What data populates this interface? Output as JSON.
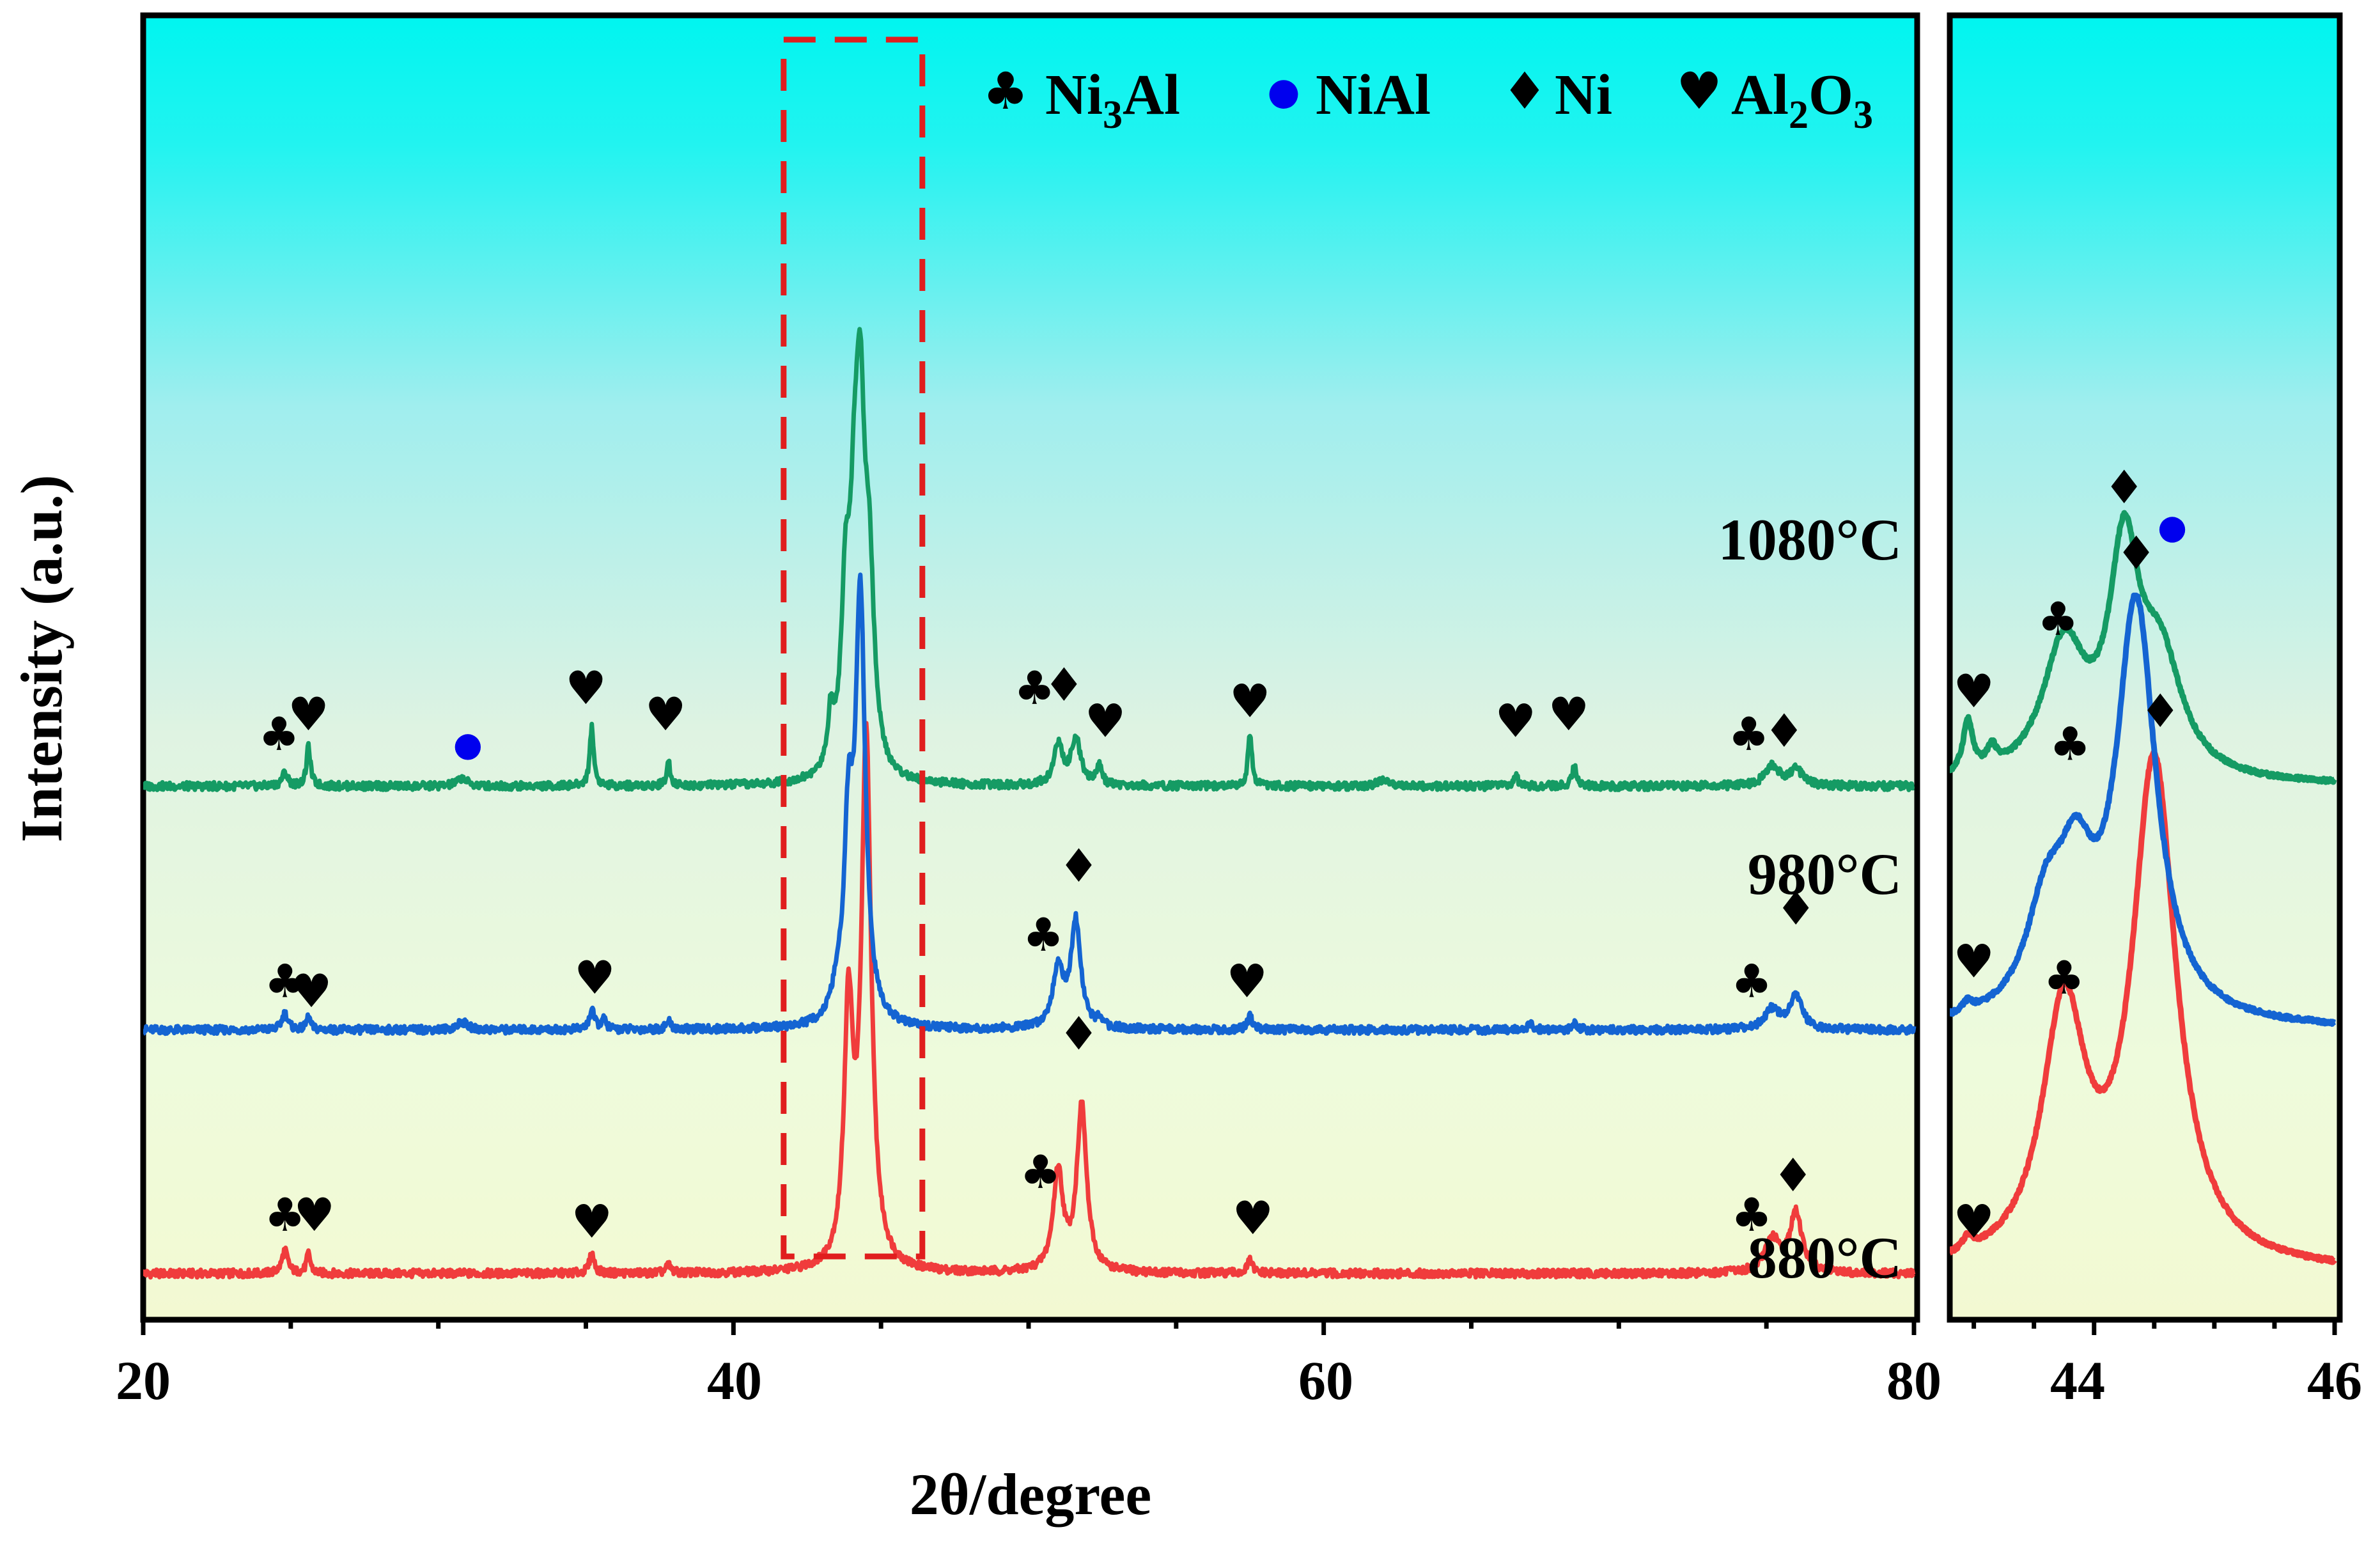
{
  "chart_data": {
    "type": "line",
    "title": "",
    "xlabel": "2θ/degree",
    "ylabel": "Intensity (a.u.)",
    "xlim": [
      20,
      80
    ],
    "xticks": [
      "20",
      "40",
      "60",
      "80"
    ],
    "inset_xlim": [
      42.8,
      46
    ],
    "inset_xticks": [
      "44",
      "46"
    ],
    "highlight_box_x": [
      41.7,
      46.4
    ],
    "colors": {
      "s880": "#f03c3c",
      "s980": "#1464d2",
      "s1080": "#159b64",
      "ni3al": "#ff00ff",
      "nial": "#0000ee",
      "ni": "#000000",
      "al2o3": "#ff8c14",
      "box": "#e01e1e"
    },
    "legend": [
      {
        "symbol": "club",
        "label": "Ni",
        "sub": "3",
        "label2": "Al",
        "color": "#ff00ff"
      },
      {
        "symbol": "circle",
        "label": "NiAl",
        "color": "#0000ee"
      },
      {
        "symbol": "diamond",
        "label": "Ni",
        "color": "#000000"
      },
      {
        "symbol": "heart",
        "label": "Al",
        "sub": "2",
        "label2": "O",
        "sub2": "3",
        "color": "#ff8c14"
      }
    ],
    "series": [
      {
        "name": "880°C",
        "color": "#f03c3c",
        "baseline": 0.07,
        "peaks": [
          [
            24.8,
            0.035,
            0.12
          ],
          [
            25.6,
            0.03,
            0.08
          ],
          [
            35.2,
            0.03,
            0.1
          ],
          [
            37.8,
            0.012,
            0.1
          ],
          [
            43.9,
            0.38,
            0.18
          ],
          [
            44.5,
            0.8,
            0.2
          ],
          [
            51.0,
            0.15,
            0.2
          ],
          [
            51.8,
            0.25,
            0.2
          ],
          [
            57.5,
            0.02,
            0.1
          ],
          [
            75.2,
            0.05,
            0.3
          ],
          [
            76.0,
            0.09,
            0.25
          ]
        ],
        "markers": [
          {
            "x": 24.8,
            "y": 0.135,
            "phase": "club"
          },
          {
            "x": 25.8,
            "y": 0.135,
            "phase": "heart"
          },
          {
            "x": 35.2,
            "y": 0.125,
            "phase": "heart"
          },
          {
            "x": 51.7,
            "y": 0.41,
            "phase": "diamond"
          },
          {
            "x": 50.4,
            "y": 0.2,
            "phase": "club"
          },
          {
            "x": 57.6,
            "y": 0.13,
            "phase": "heart"
          },
          {
            "x": 74.5,
            "y": 0.135,
            "phase": "club"
          },
          {
            "x": 75.9,
            "y": 0.195,
            "phase": "diamond"
          }
        ]
      },
      {
        "name": "980°C",
        "color": "#1464d2",
        "baseline": 0.44,
        "peaks": [
          [
            24.8,
            0.025,
            0.12
          ],
          [
            25.6,
            0.02,
            0.08
          ],
          [
            30.8,
            0.012,
            0.2
          ],
          [
            35.2,
            0.03,
            0.1
          ],
          [
            35.6,
            0.015,
            0.1
          ],
          [
            37.8,
            0.012,
            0.1
          ],
          [
            43.5,
            0.03,
            0.2
          ],
          [
            43.9,
            0.27,
            0.18
          ],
          [
            44.3,
            0.64,
            0.2
          ],
          [
            51.0,
            0.09,
            0.22
          ],
          [
            51.6,
            0.16,
            0.2
          ],
          [
            52.4,
            0.01,
            0.1
          ],
          [
            57.5,
            0.02,
            0.1
          ],
          [
            67.0,
            0.01,
            0.1
          ],
          [
            68.5,
            0.01,
            0.1
          ],
          [
            75.2,
            0.03,
            0.3
          ],
          [
            76.0,
            0.05,
            0.25
          ]
        ],
        "markers": [
          {
            "x": 24.8,
            "y": 0.49,
            "phase": "club"
          },
          {
            "x": 25.7,
            "y": 0.475,
            "phase": "heart"
          },
          {
            "x": 35.3,
            "y": 0.495,
            "phase": "heart"
          },
          {
            "x": 50.5,
            "y": 0.56,
            "phase": "club"
          },
          {
            "x": 51.7,
            "y": 0.665,
            "phase": "diamond"
          },
          {
            "x": 57.4,
            "y": 0.49,
            "phase": "heart"
          },
          {
            "x": 74.5,
            "y": 0.49,
            "phase": "club"
          },
          {
            "x": 76.0,
            "y": 0.6,
            "phase": "diamond"
          }
        ]
      },
      {
        "name": "1080°C",
        "color": "#159b64",
        "baseline": 0.81,
        "peaks": [
          [
            24.8,
            0.02,
            0.12
          ],
          [
            25.6,
            0.06,
            0.08
          ],
          [
            30.8,
            0.012,
            0.2
          ],
          [
            35.2,
            0.09,
            0.08
          ],
          [
            37.8,
            0.035,
            0.08
          ],
          [
            43.3,
            0.08,
            0.12
          ],
          [
            43.8,
            0.25,
            0.18
          ],
          [
            44.1,
            0.28,
            0.18
          ],
          [
            44.3,
            0.45,
            0.18
          ],
          [
            44.6,
            0.27,
            0.2
          ],
          [
            51.0,
            0.06,
            0.18
          ],
          [
            51.6,
            0.07,
            0.2
          ],
          [
            52.4,
            0.03,
            0.1
          ],
          [
            57.5,
            0.08,
            0.08
          ],
          [
            62.0,
            0.01,
            0.2
          ],
          [
            66.5,
            0.015,
            0.1
          ],
          [
            68.5,
            0.03,
            0.1
          ],
          [
            75.2,
            0.03,
            0.3
          ],
          [
            76.0,
            0.025,
            0.25
          ]
        ],
        "markers": [
          {
            "x": 24.6,
            "y": 0.865,
            "phase": "club"
          },
          {
            "x": 25.6,
            "y": 0.895,
            "phase": "heart"
          },
          {
            "x": 31.0,
            "y": 0.85,
            "phase": "circle"
          },
          {
            "x": 35.0,
            "y": 0.935,
            "phase": "heart"
          },
          {
            "x": 37.7,
            "y": 0.895,
            "phase": "heart"
          },
          {
            "x": 50.2,
            "y": 0.935,
            "phase": "club"
          },
          {
            "x": 51.2,
            "y": 0.94,
            "phase": "diamond"
          },
          {
            "x": 52.6,
            "y": 0.885,
            "phase": "heart"
          },
          {
            "x": 57.5,
            "y": 0.915,
            "phase": "heart"
          },
          {
            "x": 66.5,
            "y": 0.885,
            "phase": "heart"
          },
          {
            "x": 68.3,
            "y": 0.895,
            "phase": "heart"
          },
          {
            "x": 74.4,
            "y": 0.865,
            "phase": "club"
          },
          {
            "x": 75.6,
            "y": 0.87,
            "phase": "diamond"
          }
        ]
      }
    ],
    "inset_series": [
      {
        "name": "880°C",
        "color": "#f03c3c",
        "baseline": 0.07,
        "peaks": [
          [
            42.95,
            0.02,
            0.05
          ],
          [
            43.75,
            0.38,
            0.22
          ],
          [
            44.5,
            0.76,
            0.22
          ]
        ],
        "markers": [
          {
            "x": 43.0,
            "y": 0.125,
            "phase": "heart"
          },
          {
            "x": 43.75,
            "y": 0.495,
            "phase": "club"
          },
          {
            "x": 44.55,
            "y": 0.9,
            "phase": "diamond"
          }
        ]
      },
      {
        "name": "980°C",
        "color": "#1464d2",
        "baseline": 0.44,
        "peaks": [
          [
            42.95,
            0.015,
            0.05
          ],
          [
            43.6,
            0.15,
            0.2
          ],
          [
            43.85,
            0.18,
            0.18
          ],
          [
            44.35,
            0.63,
            0.2
          ]
        ],
        "markers": [
          {
            "x": 43.0,
            "y": 0.52,
            "phase": "heart"
          },
          {
            "x": 43.8,
            "y": 0.85,
            "phase": "club"
          },
          {
            "x": 44.35,
            "y": 1.14,
            "phase": "diamond"
          }
        ]
      },
      {
        "name": "1080°C",
        "color": "#159b64",
        "baseline": 0.81,
        "peaks": [
          [
            42.95,
            0.08,
            0.05
          ],
          [
            43.15,
            0.03,
            0.05
          ],
          [
            43.75,
            0.2,
            0.22
          ],
          [
            44.25,
            0.32,
            0.15
          ],
          [
            44.55,
            0.17,
            0.22
          ]
        ],
        "markers": [
          {
            "x": 43.0,
            "y": 0.93,
            "phase": "heart"
          },
          {
            "x": 43.7,
            "y": 1.04,
            "phase": "club"
          },
          {
            "x": 44.25,
            "y": 1.24,
            "phase": "diamond"
          },
          {
            "x": 44.65,
            "y": 1.18,
            "phase": "circle"
          }
        ]
      }
    ]
  }
}
